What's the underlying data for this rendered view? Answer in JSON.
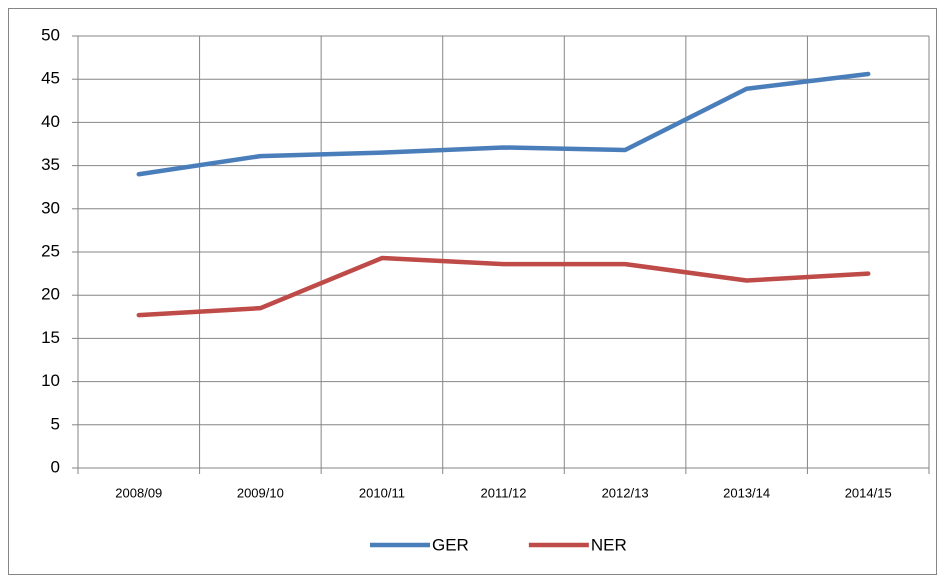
{
  "chart_data": {
    "type": "line",
    "categories": [
      "2008/09",
      "2009/10",
      "2010/11",
      "2011/12",
      "2012/13",
      "2013/14",
      "2014/15"
    ],
    "series": [
      {
        "name": "GER",
        "color": "#4a7ebb",
        "values": [
          34.0,
          36.1,
          36.5,
          37.1,
          36.8,
          43.9,
          45.6
        ]
      },
      {
        "name": "NER",
        "color": "#be4b48",
        "values": [
          17.7,
          18.5,
          24.3,
          23.6,
          23.6,
          21.7,
          22.5
        ]
      }
    ],
    "ylim": [
      0,
      50
    ],
    "yticks": [
      0,
      5,
      10,
      15,
      20,
      25,
      30,
      35,
      40,
      45,
      50
    ],
    "grid": true,
    "legend": "bottom"
  }
}
